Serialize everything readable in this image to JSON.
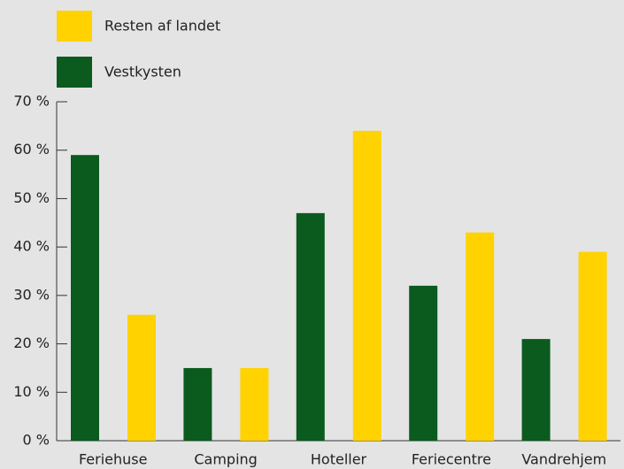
{
  "chart_data": {
    "type": "bar",
    "categories": [
      "Feriehuse",
      "Camping",
      "Hoteller",
      "Feriecentre",
      "Vandrehjem"
    ],
    "series": [
      {
        "name": "Vestkysten",
        "color": "#0b5a1e",
        "values": [
          59,
          15,
          47,
          32,
          21
        ]
      },
      {
        "name": "Resten af landet",
        "color": "#ffd200",
        "values": [
          26,
          15,
          64,
          43,
          39
        ]
      }
    ],
    "ylim": [
      0,
      70
    ],
    "yticks": [
      {
        "value": 0,
        "label": "0 %"
      },
      {
        "value": 10,
        "label": "10 %"
      },
      {
        "value": 20,
        "label": "20 %"
      },
      {
        "value": 30,
        "label": "30 %"
      },
      {
        "value": 40,
        "label": "40 %"
      },
      {
        "value": 50,
        "label": "50 %"
      },
      {
        "value": 60,
        "label": "60 %"
      },
      {
        "value": 70,
        "label": "70 %"
      }
    ],
    "grid": false
  }
}
